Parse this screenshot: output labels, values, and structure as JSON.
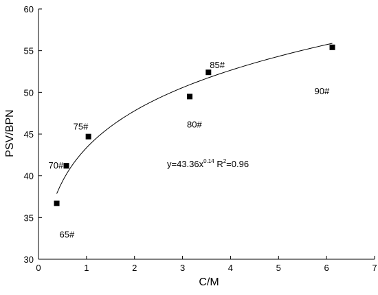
{
  "chart_data": {
    "type": "scatter",
    "xlabel": "C/M",
    "ylabel": "PSV/BPN",
    "xlim": [
      0,
      7
    ],
    "ylim": [
      30,
      60
    ],
    "x_ticks": [
      0,
      1,
      2,
      3,
      4,
      5,
      6,
      7
    ],
    "y_ticks": [
      30,
      35,
      40,
      45,
      50,
      55,
      60
    ],
    "grid": false,
    "points": [
      {
        "x": 0.38,
        "y": 36.7,
        "label": "65#"
      },
      {
        "x": 0.58,
        "y": 41.2,
        "label": "70#"
      },
      {
        "x": 1.04,
        "y": 44.7,
        "label": "75#"
      },
      {
        "x": 3.15,
        "y": 49.5,
        "label": "80#"
      },
      {
        "x": 3.54,
        "y": 52.4,
        "label": "85#"
      },
      {
        "x": 6.12,
        "y": 55.4,
        "label": "90#"
      }
    ],
    "fit": {
      "type": "power",
      "a": 43.36,
      "b": 0.14,
      "x_range": [
        0.38,
        6.12
      ],
      "equation_base": "y=43.36x",
      "equation_exp": "0.14",
      "r2_label": " R",
      "r2_exp": "2",
      "r2_value": "=0.96"
    }
  }
}
